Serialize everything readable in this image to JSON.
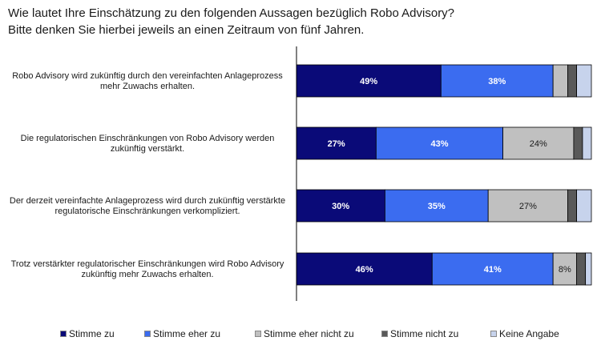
{
  "title": {
    "line1": "Wie lautet Ihre Einschätzung zu den folgenden Aussagen bezüglich Robo Advisory?",
    "line2": "Bitte denken Sie hierbei jeweils an einen Zeitraum von fünf Jahren."
  },
  "chart_data": {
    "type": "bar",
    "orientation": "horizontal",
    "stacked": true,
    "categories": [
      [
        "Robo Advisory wird zukünftig durch den vereinfachten Anlageprozess",
        "mehr Zuwachs erhalten."
      ],
      [
        "Die regulatorischen Einschränkungen von Robo Advisory werden",
        "zukünftig verstärkt."
      ],
      [
        "Der derzeit vereinfachte Anlageprozess wird durch zukünftig verstärkte",
        "regulatorische Einschränkungen verkompliziert."
      ],
      [
        "Trotz verstärkter regulatorischer Einschränkungen wird Robo Advisory",
        "zukünftig mehr Zuwachs erhalten."
      ]
    ],
    "series": [
      {
        "name": "Stimme zu",
        "color": "#0a0a78",
        "values": [
          49,
          27,
          30,
          46
        ],
        "labels": [
          "49%",
          "27%",
          "30%",
          "46%"
        ]
      },
      {
        "name": "Stimme eher zu",
        "color": "#3b6cf0",
        "values": [
          38,
          43,
          35,
          41
        ],
        "labels": [
          "38%",
          "43%",
          "35%",
          "41%"
        ]
      },
      {
        "name": "Stimme eher nicht zu",
        "color": "#c0c0c0",
        "values": [
          5,
          24,
          27,
          8
        ],
        "labels": [
          "",
          "24%",
          "27%",
          "8%"
        ]
      },
      {
        "name": "Stimme nicht zu",
        "color": "#595959",
        "values": [
          3,
          3,
          3,
          3
        ],
        "labels": [
          "",
          "",
          "",
          ""
        ]
      },
      {
        "name": "Keine Angabe",
        "color": "#c7d3ec",
        "values": [
          5,
          3,
          5,
          2
        ],
        "labels": [
          "",
          "",
          "",
          ""
        ]
      }
    ],
    "xlim": [
      0,
      100
    ],
    "grid": false,
    "legend_position": "bottom"
  }
}
